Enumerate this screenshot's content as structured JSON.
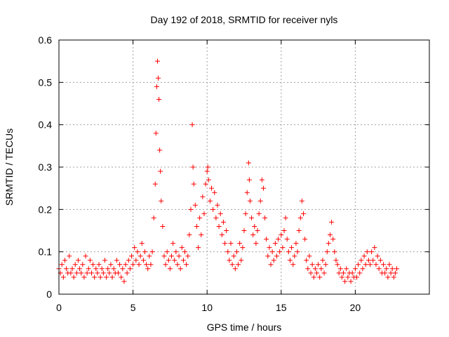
{
  "chart_data": {
    "type": "scatter",
    "title": "Day 192 of 2018, SRMTID for receiver nyls",
    "xlabel": "GPS time / hours",
    "ylabel": "SRMTID / TECUs",
    "xlim": [
      0,
      25
    ],
    "ylim": [
      0,
      0.6
    ],
    "xticks": [
      0,
      5,
      10,
      15,
      20
    ],
    "yticks": [
      0,
      0.1,
      0.2,
      0.3,
      0.4,
      0.5,
      0.6
    ],
    "xtick_labels": [
      "0",
      "5",
      "10",
      "15",
      "20"
    ],
    "ytick_labels": [
      "0",
      "0.1",
      "0.2",
      "0.3",
      "0.4",
      "0.5",
      "0.6"
    ],
    "grid": true,
    "marker": "+",
    "color": "#ff0000",
    "series": [
      {
        "name": "SRMTID",
        "points": [
          [
            0.0,
            0.06
          ],
          [
            0.1,
            0.05
          ],
          [
            0.2,
            0.07
          ],
          [
            0.3,
            0.04
          ],
          [
            0.4,
            0.08
          ],
          [
            0.5,
            0.06
          ],
          [
            0.6,
            0.05
          ],
          [
            0.7,
            0.09
          ],
          [
            0.8,
            0.05
          ],
          [
            0.9,
            0.06
          ],
          [
            1.0,
            0.04
          ],
          [
            1.1,
            0.07
          ],
          [
            1.2,
            0.05
          ],
          [
            1.3,
            0.08
          ],
          [
            1.4,
            0.06
          ],
          [
            1.5,
            0.05
          ],
          [
            1.6,
            0.07
          ],
          [
            1.7,
            0.04
          ],
          [
            1.8,
            0.09
          ],
          [
            1.9,
            0.05
          ],
          [
            2.0,
            0.06
          ],
          [
            2.1,
            0.08
          ],
          [
            2.2,
            0.05
          ],
          [
            2.3,
            0.07
          ],
          [
            2.4,
            0.04
          ],
          [
            2.5,
            0.06
          ],
          [
            2.6,
            0.05
          ],
          [
            2.7,
            0.07
          ],
          [
            2.8,
            0.04
          ],
          [
            2.9,
            0.06
          ],
          [
            3.0,
            0.05
          ],
          [
            3.1,
            0.08
          ],
          [
            3.2,
            0.04
          ],
          [
            3.3,
            0.06
          ],
          [
            3.4,
            0.05
          ],
          [
            3.5,
            0.07
          ],
          [
            3.6,
            0.04
          ],
          [
            3.7,
            0.06
          ],
          [
            3.8,
            0.05
          ],
          [
            3.9,
            0.08
          ],
          [
            4.0,
            0.05
          ],
          [
            4.1,
            0.07
          ],
          [
            4.2,
            0.04
          ],
          [
            4.3,
            0.06
          ],
          [
            4.4,
            0.03
          ],
          [
            4.5,
            0.07
          ],
          [
            4.6,
            0.05
          ],
          [
            4.7,
            0.08
          ],
          [
            4.8,
            0.06
          ],
          [
            4.9,
            0.09
          ],
          [
            5.0,
            0.07
          ],
          [
            5.1,
            0.11
          ],
          [
            5.2,
            0.08
          ],
          [
            5.3,
            0.1
          ],
          [
            5.4,
            0.07
          ],
          [
            5.5,
            0.09
          ],
          [
            5.6,
            0.12
          ],
          [
            5.7,
            0.08
          ],
          [
            5.8,
            0.1
          ],
          [
            5.9,
            0.07
          ],
          [
            6.0,
            0.06
          ],
          [
            6.1,
            0.09
          ],
          [
            6.2,
            0.07
          ],
          [
            6.3,
            0.1
          ],
          [
            6.4,
            0.18
          ],
          [
            6.5,
            0.26
          ],
          [
            6.55,
            0.38
          ],
          [
            6.6,
            0.49
          ],
          [
            6.65,
            0.55
          ],
          [
            6.7,
            0.51
          ],
          [
            6.75,
            0.46
          ],
          [
            6.8,
            0.34
          ],
          [
            6.85,
            0.29
          ],
          [
            6.9,
            0.22
          ],
          [
            7.0,
            0.16
          ],
          [
            7.1,
            0.09
          ],
          [
            7.2,
            0.07
          ],
          [
            7.3,
            0.1
          ],
          [
            7.4,
            0.08
          ],
          [
            7.5,
            0.06
          ],
          [
            7.6,
            0.09
          ],
          [
            7.7,
            0.12
          ],
          [
            7.8,
            0.08
          ],
          [
            7.9,
            0.1
          ],
          [
            8.0,
            0.07
          ],
          [
            8.1,
            0.09
          ],
          [
            8.2,
            0.06
          ],
          [
            8.3,
            0.11
          ],
          [
            8.4,
            0.08
          ],
          [
            8.5,
            0.1
          ],
          [
            8.6,
            0.07
          ],
          [
            8.7,
            0.09
          ],
          [
            8.8,
            0.14
          ],
          [
            8.9,
            0.2
          ],
          [
            9.0,
            0.4
          ],
          [
            9.05,
            0.3
          ],
          [
            9.1,
            0.26
          ],
          [
            9.2,
            0.21
          ],
          [
            9.3,
            0.16
          ],
          [
            9.4,
            0.11
          ],
          [
            9.5,
            0.18
          ],
          [
            9.6,
            0.14
          ],
          [
            9.7,
            0.23
          ],
          [
            9.8,
            0.19
          ],
          [
            9.9,
            0.26
          ],
          [
            10.0,
            0.29
          ],
          [
            10.05,
            0.3
          ],
          [
            10.1,
            0.27
          ],
          [
            10.2,
            0.22
          ],
          [
            10.3,
            0.25
          ],
          [
            10.4,
            0.2
          ],
          [
            10.5,
            0.24
          ],
          [
            10.6,
            0.18
          ],
          [
            10.7,
            0.21
          ],
          [
            10.8,
            0.16
          ],
          [
            10.9,
            0.19
          ],
          [
            11.0,
            0.14
          ],
          [
            11.1,
            0.17
          ],
          [
            11.2,
            0.12
          ],
          [
            11.3,
            0.15
          ],
          [
            11.4,
            0.1
          ],
          [
            11.5,
            0.08
          ],
          [
            11.6,
            0.12
          ],
          [
            11.7,
            0.07
          ],
          [
            11.8,
            0.09
          ],
          [
            11.9,
            0.06
          ],
          [
            12.0,
            0.1
          ],
          [
            12.1,
            0.07
          ],
          [
            12.2,
            0.12
          ],
          [
            12.3,
            0.08
          ],
          [
            12.4,
            0.11
          ],
          [
            12.5,
            0.15
          ],
          [
            12.6,
            0.19
          ],
          [
            12.7,
            0.24
          ],
          [
            12.8,
            0.31
          ],
          [
            12.85,
            0.27
          ],
          [
            12.9,
            0.22
          ],
          [
            13.0,
            0.18
          ],
          [
            13.1,
            0.14
          ],
          [
            13.2,
            0.16
          ],
          [
            13.3,
            0.12
          ],
          [
            13.4,
            0.15
          ],
          [
            13.5,
            0.19
          ],
          [
            13.6,
            0.22
          ],
          [
            13.7,
            0.27
          ],
          [
            13.8,
            0.25
          ],
          [
            13.9,
            0.18
          ],
          [
            14.0,
            0.13
          ],
          [
            14.1,
            0.09
          ],
          [
            14.2,
            0.11
          ],
          [
            14.3,
            0.07
          ],
          [
            14.4,
            0.1
          ],
          [
            14.5,
            0.08
          ],
          [
            14.6,
            0.12
          ],
          [
            14.7,
            0.09
          ],
          [
            14.8,
            0.13
          ],
          [
            14.9,
            0.1
          ],
          [
            15.0,
            0.14
          ],
          [
            15.1,
            0.11
          ],
          [
            15.2,
            0.15
          ],
          [
            15.3,
            0.18
          ],
          [
            15.4,
            0.13
          ],
          [
            15.5,
            0.1
          ],
          [
            15.6,
            0.08
          ],
          [
            15.7,
            0.11
          ],
          [
            15.8,
            0.07
          ],
          [
            15.9,
            0.09
          ],
          [
            16.0,
            0.12
          ],
          [
            16.1,
            0.1
          ],
          [
            16.2,
            0.15
          ],
          [
            16.3,
            0.18
          ],
          [
            16.4,
            0.22
          ],
          [
            16.5,
            0.19
          ],
          [
            16.6,
            0.13
          ],
          [
            16.7,
            0.08
          ],
          [
            16.8,
            0.06
          ],
          [
            16.9,
            0.09
          ],
          [
            17.0,
            0.05
          ],
          [
            17.1,
            0.07
          ],
          [
            17.2,
            0.04
          ],
          [
            17.3,
            0.06
          ],
          [
            17.4,
            0.05
          ],
          [
            17.5,
            0.07
          ],
          [
            17.6,
            0.04
          ],
          [
            17.7,
            0.06
          ],
          [
            17.8,
            0.08
          ],
          [
            17.9,
            0.05
          ],
          [
            18.0,
            0.07
          ],
          [
            18.1,
            0.1
          ],
          [
            18.2,
            0.12
          ],
          [
            18.3,
            0.14
          ],
          [
            18.4,
            0.17
          ],
          [
            18.5,
            0.13
          ],
          [
            18.6,
            0.1
          ],
          [
            18.7,
            0.08
          ],
          [
            18.8,
            0.07
          ],
          [
            18.9,
            0.05
          ],
          [
            19.0,
            0.06
          ],
          [
            19.1,
            0.04
          ],
          [
            19.2,
            0.05
          ],
          [
            19.3,
            0.03
          ],
          [
            19.4,
            0.06
          ],
          [
            19.5,
            0.04
          ],
          [
            19.6,
            0.05
          ],
          [
            19.7,
            0.03
          ],
          [
            19.8,
            0.05
          ],
          [
            19.9,
            0.04
          ],
          [
            20.0,
            0.06
          ],
          [
            20.1,
            0.04
          ],
          [
            20.2,
            0.07
          ],
          [
            20.3,
            0.05
          ],
          [
            20.4,
            0.08
          ],
          [
            20.5,
            0.06
          ],
          [
            20.6,
            0.09
          ],
          [
            20.7,
            0.07
          ],
          [
            20.8,
            0.1
          ],
          [
            20.9,
            0.08
          ],
          [
            21.0,
            0.07
          ],
          [
            21.1,
            0.1
          ],
          [
            21.2,
            0.08
          ],
          [
            21.3,
            0.11
          ],
          [
            21.4,
            0.07
          ],
          [
            21.5,
            0.09
          ],
          [
            21.6,
            0.06
          ],
          [
            21.7,
            0.08
          ],
          [
            21.8,
            0.05
          ],
          [
            21.9,
            0.07
          ],
          [
            22.0,
            0.05
          ],
          [
            22.1,
            0.06
          ],
          [
            22.2,
            0.04
          ],
          [
            22.3,
            0.07
          ],
          [
            22.4,
            0.05
          ],
          [
            22.5,
            0.06
          ],
          [
            22.6,
            0.04
          ],
          [
            22.7,
            0.05
          ],
          [
            22.8,
            0.06
          ]
        ]
      }
    ]
  }
}
